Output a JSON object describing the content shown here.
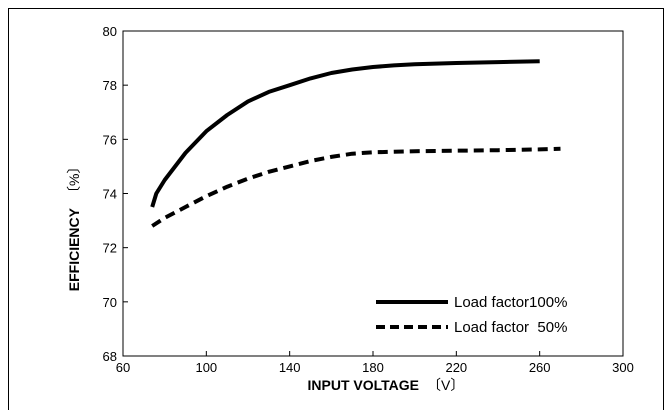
{
  "chart_data": {
    "type": "line",
    "xlabel": "INPUT VOLTAGE",
    "xunit": "〔V〕",
    "ylabel": "EFFICIENCY",
    "yunit": "〔%〕",
    "xlim": [
      60,
      300
    ],
    "ylim": [
      68,
      80
    ],
    "xticks": [
      60,
      100,
      140,
      180,
      220,
      260,
      300
    ],
    "yticks": [
      68,
      70,
      72,
      74,
      76,
      78,
      80
    ],
    "grid": false,
    "legend_position": "bottom-right",
    "series": [
      {
        "name": "Load factor100%",
        "style": "solid",
        "color": "#000000",
        "x": [
          74,
          76,
          80,
          90,
          100,
          110,
          120,
          130,
          140,
          150,
          160,
          170,
          180,
          190,
          200,
          220,
          240,
          260
        ],
        "y": [
          73.5,
          74.0,
          74.5,
          75.5,
          76.3,
          76.9,
          77.4,
          77.75,
          78.0,
          78.25,
          78.45,
          78.58,
          78.67,
          78.73,
          78.77,
          78.82,
          78.85,
          78.88
        ]
      },
      {
        "name": "Load factor  50%",
        "style": "dashed",
        "color": "#000000",
        "x": [
          74,
          80,
          90,
          100,
          110,
          120,
          130,
          140,
          150,
          160,
          170,
          180,
          200,
          220,
          240,
          260,
          270
        ],
        "y": [
          72.8,
          73.1,
          73.5,
          73.9,
          74.25,
          74.55,
          74.8,
          75.0,
          75.2,
          75.35,
          75.47,
          75.52,
          75.56,
          75.58,
          75.6,
          75.63,
          75.65
        ]
      }
    ]
  }
}
